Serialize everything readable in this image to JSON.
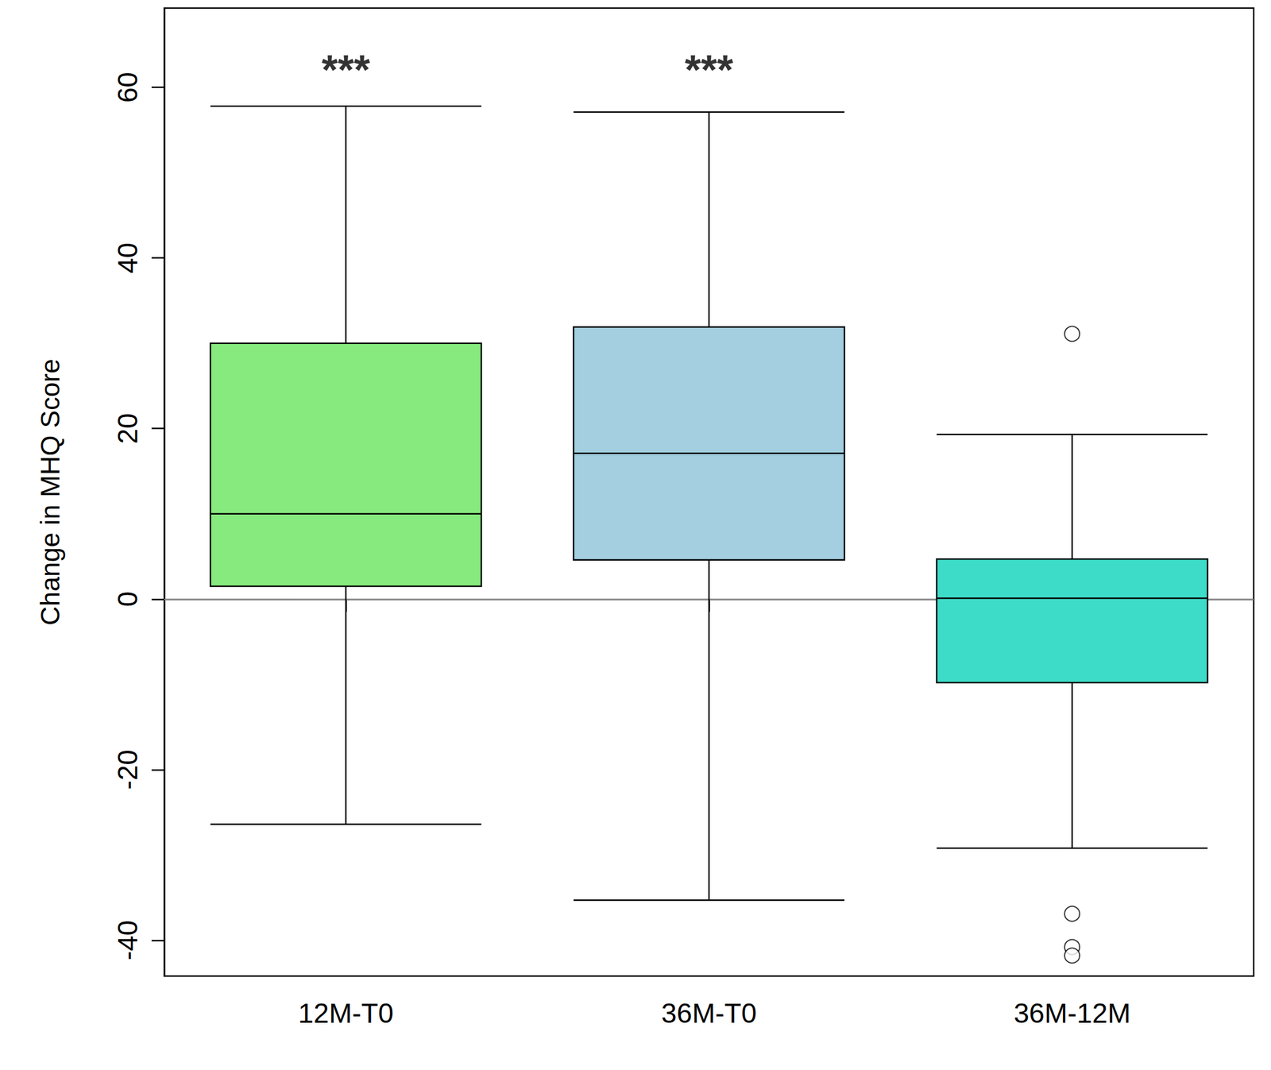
{
  "chart_data": {
    "type": "boxplot",
    "y_label": "Change in MHQ Score",
    "categories": [
      "12M-T0",
      "36M-T0",
      "36M-12M"
    ],
    "boxes": [
      {
        "category": "12M-T0",
        "min": -26.4,
        "q1": 1.5,
        "median": 10.0,
        "q3": 30.0,
        "max": 57.8,
        "color": "#86ea7e"
      },
      {
        "category": "36M-T0",
        "min": -35.3,
        "q1": 4.6,
        "median": 17.1,
        "q3": 31.9,
        "max": 57.1,
        "color": "#a3cfe0"
      },
      {
        "category": "36M-12M",
        "min": -29.2,
        "q1": -9.8,
        "median": 0.1,
        "q3": 4.7,
        "max": 19.3,
        "color": "#3ddcc8"
      }
    ],
    "outliers": [
      {
        "category": "36M-12M",
        "values": [
          31.1,
          -36.9,
          -40.8,
          -41.8
        ]
      }
    ],
    "annotations": [
      {
        "category": "12M-T0",
        "y": 62.9,
        "text": "***"
      },
      {
        "category": "36M-T0",
        "y": 62.9,
        "text": "***"
      }
    ],
    "hlines": [
      0
    ],
    "ylim": [
      -44.2,
      69.3
    ],
    "yticks": [
      -40,
      -20,
      0,
      20,
      40,
      60
    ],
    "grid": false
  }
}
